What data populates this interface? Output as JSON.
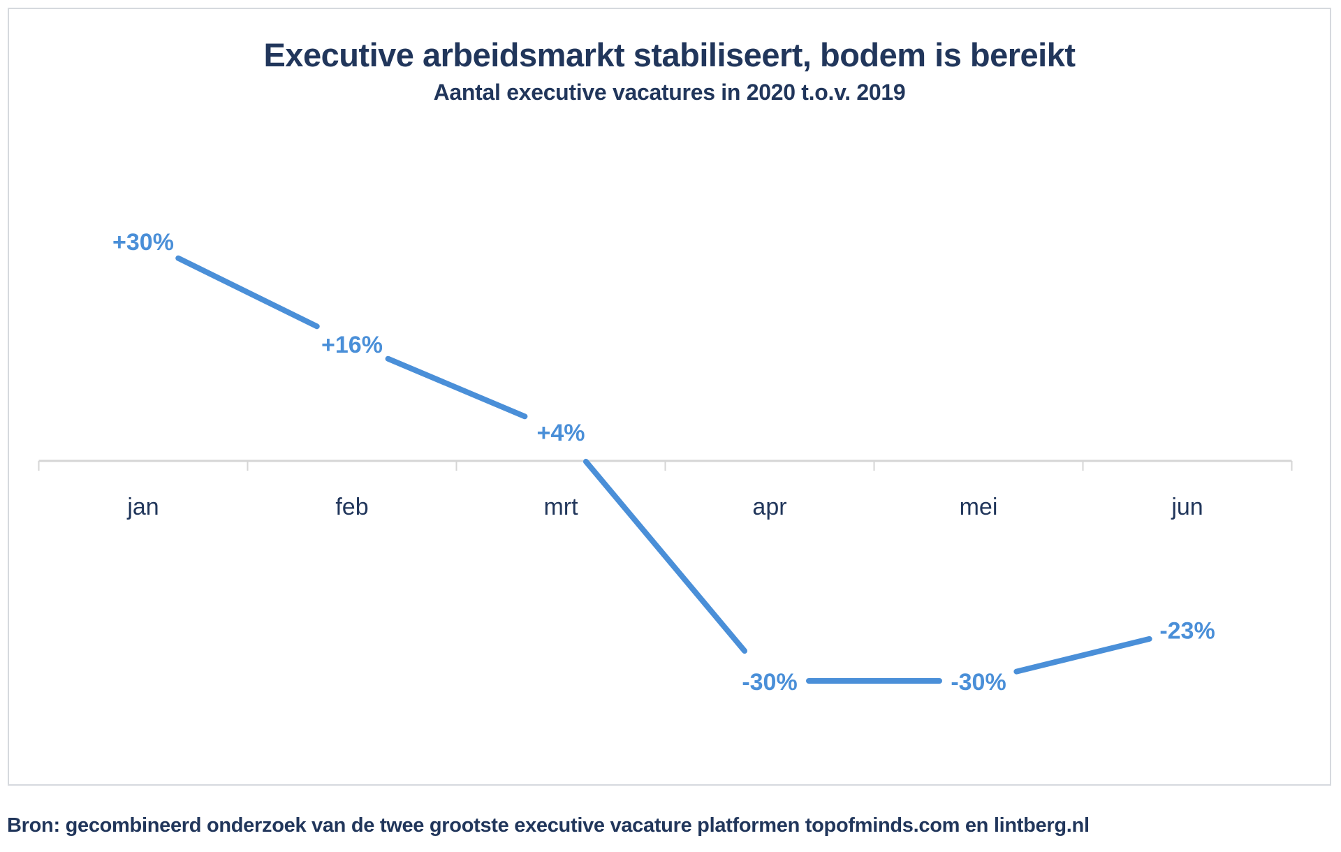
{
  "page": {
    "title": "Executive arbeidsmarkt stabiliseert, bodem is bereikt",
    "subtitle": "Aantal executive vacatures in 2020 t.o.v. 2019",
    "source": "Bron: gecombineerd onderzoek van de twee grootste executive vacature platformen topofminds.com en lintberg.nl"
  },
  "colors": {
    "line": "#4a8fd8",
    "point_label": "#4a8fd8",
    "text": "#21365b",
    "axis": "#d6d6d6",
    "card_border": "#d6d9de"
  },
  "chart_data": {
    "type": "line",
    "title": "Executive arbeidsmarkt stabiliseert, bodem is bereikt",
    "subtitle": "Aantal executive vacatures in 2020 t.o.v. 2019",
    "categories": [
      "jan",
      "feb",
      "mrt",
      "apr",
      "mei",
      "jun"
    ],
    "values": [
      30,
      16,
      4,
      -30,
      -30,
      -23
    ],
    "point_labels": [
      "+30%",
      "+16%",
      "+4%",
      "-30%",
      "-30%",
      "-23%"
    ],
    "unit": "%",
    "ylim": [
      -45,
      45
    ],
    "baseline": 0,
    "grid": false,
    "legend": false,
    "yaxis_visible": false,
    "xaxis": "zero-line with boundary ticks, labels below",
    "source": "Bron: gecombineerd onderzoek van de twee grootste executive vacature platformen topofminds.com en lintberg.nl"
  }
}
